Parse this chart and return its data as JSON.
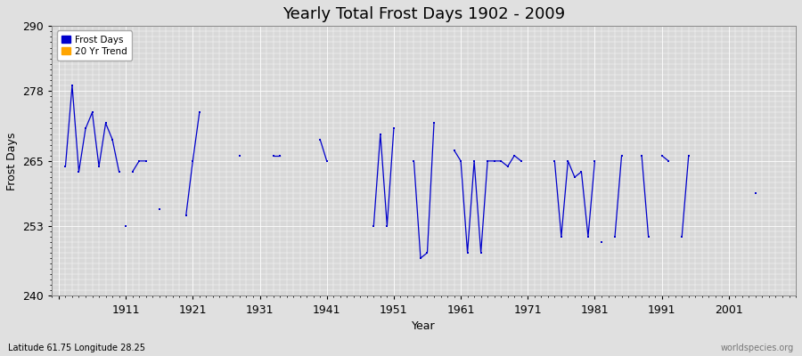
{
  "title": "Yearly Total Frost Days 1902 - 2009",
  "xlabel": "Year",
  "ylabel": "Frost Days",
  "ylim": [
    240,
    290
  ],
  "xlim": [
    1900,
    2011
  ],
  "yticks": [
    240,
    253,
    265,
    278,
    290
  ],
  "xticks": [
    1901,
    1911,
    1921,
    1931,
    1941,
    1951,
    1961,
    1971,
    1981,
    1991,
    2001
  ],
  "xticklabels": [
    "",
    "1911",
    "1921",
    "1931",
    "1941",
    "1951",
    "1961",
    "1971",
    "1981",
    "1991",
    "2001"
  ],
  "line_color": "#0000cc",
  "trend_color": "#ffa500",
  "bg_color": "#e0e0e0",
  "plot_bg_color": "#d8d8d8",
  "grid_color": "#ffffff",
  "subtitle": "Latitude 61.75 Longitude 28.25",
  "watermark": "worldspecies.org",
  "segments": [
    [
      1902,
      1903,
      1904,
      1905,
      1906,
      1907,
      1908,
      1909,
      1910
    ],
    [
      1911
    ],
    [
      1912,
      1913,
      1914
    ],
    [
      1916
    ],
    [
      1920,
      1921,
      1922
    ],
    [
      1928
    ],
    [
      1933,
      1934
    ],
    [
      1940,
      1941
    ],
    [
      1948,
      1949,
      1950,
      1951
    ],
    [
      1954,
      1955,
      1956,
      1957
    ],
    [
      1960,
      1961,
      1962,
      1963,
      1964,
      1965,
      1966,
      1967,
      1968,
      1969,
      1970
    ],
    [
      1975,
      1976,
      1977,
      1978,
      1979,
      1980,
      1981
    ],
    [
      1982
    ],
    [
      1984,
      1985
    ],
    [
      1988,
      1989
    ],
    [
      1991,
      1992
    ],
    [
      1994,
      1995
    ],
    [
      2005
    ]
  ],
  "segment_values": [
    [
      264,
      279,
      263,
      271,
      274,
      264,
      272,
      269,
      263
    ],
    [
      253
    ],
    [
      263,
      265,
      265
    ],
    [
      256
    ],
    [
      255,
      265,
      274
    ],
    [
      266
    ],
    [
      266,
      266
    ],
    [
      269,
      265
    ],
    [
      253,
      270,
      253,
      271
    ],
    [
      265,
      247,
      248,
      272
    ],
    [
      267,
      265,
      248,
      265,
      248,
      265,
      265,
      265,
      264,
      266,
      265
    ],
    [
      265,
      251,
      265,
      262,
      263,
      251,
      265
    ],
    [
      250
    ],
    [
      251,
      266
    ],
    [
      266,
      251
    ],
    [
      266,
      265
    ],
    [
      251,
      266
    ],
    [
      259
    ]
  ]
}
